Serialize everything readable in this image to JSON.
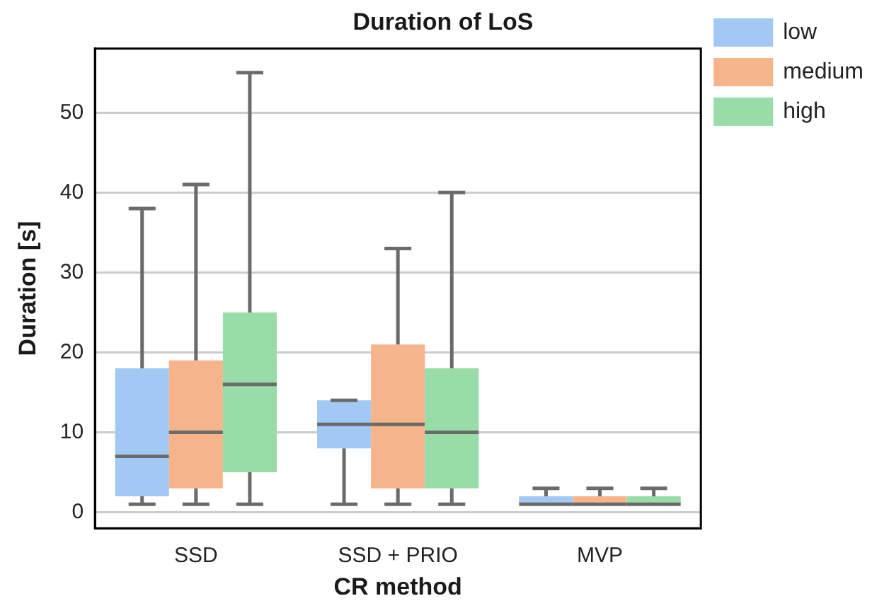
{
  "chart_data": {
    "type": "box",
    "title": "Duration of LoS",
    "xlabel": "CR method",
    "ylabel": "Duration [s]",
    "categories": [
      "SSD",
      "SSD + PRIO",
      "MVP"
    ],
    "ylim": [
      -2,
      58
    ],
    "yticks": [
      0,
      10,
      20,
      30,
      40,
      50
    ],
    "grid": "y",
    "legend": "right",
    "series": [
      {
        "name": "low",
        "color": "#a1c9f4",
        "boxes": [
          {
            "low": 1,
            "q1": 2,
            "median": 7,
            "q3": 18,
            "high": 38
          },
          {
            "low": 1,
            "q1": 8,
            "median": 11,
            "q3": 14,
            "high": 14
          },
          {
            "low": 1,
            "q1": 1,
            "median": 1,
            "q3": 2,
            "high": 3
          }
        ]
      },
      {
        "name": "medium",
        "color": "#f6b48a",
        "boxes": [
          {
            "low": 1,
            "q1": 3,
            "median": 10,
            "q3": 19,
            "high": 41
          },
          {
            "low": 1,
            "q1": 3,
            "median": 11,
            "q3": 21,
            "high": 33
          },
          {
            "low": 1,
            "q1": 1,
            "median": 1,
            "q3": 2,
            "high": 3
          }
        ]
      },
      {
        "name": "high",
        "color": "#98dca8",
        "boxes": [
          {
            "low": 1,
            "q1": 5,
            "median": 16,
            "q3": 25,
            "high": 55
          },
          {
            "low": 1,
            "q1": 3,
            "median": 10,
            "q3": 18,
            "high": 40
          },
          {
            "low": 1,
            "q1": 1,
            "median": 1,
            "q3": 2,
            "high": 3
          }
        ]
      }
    ]
  }
}
